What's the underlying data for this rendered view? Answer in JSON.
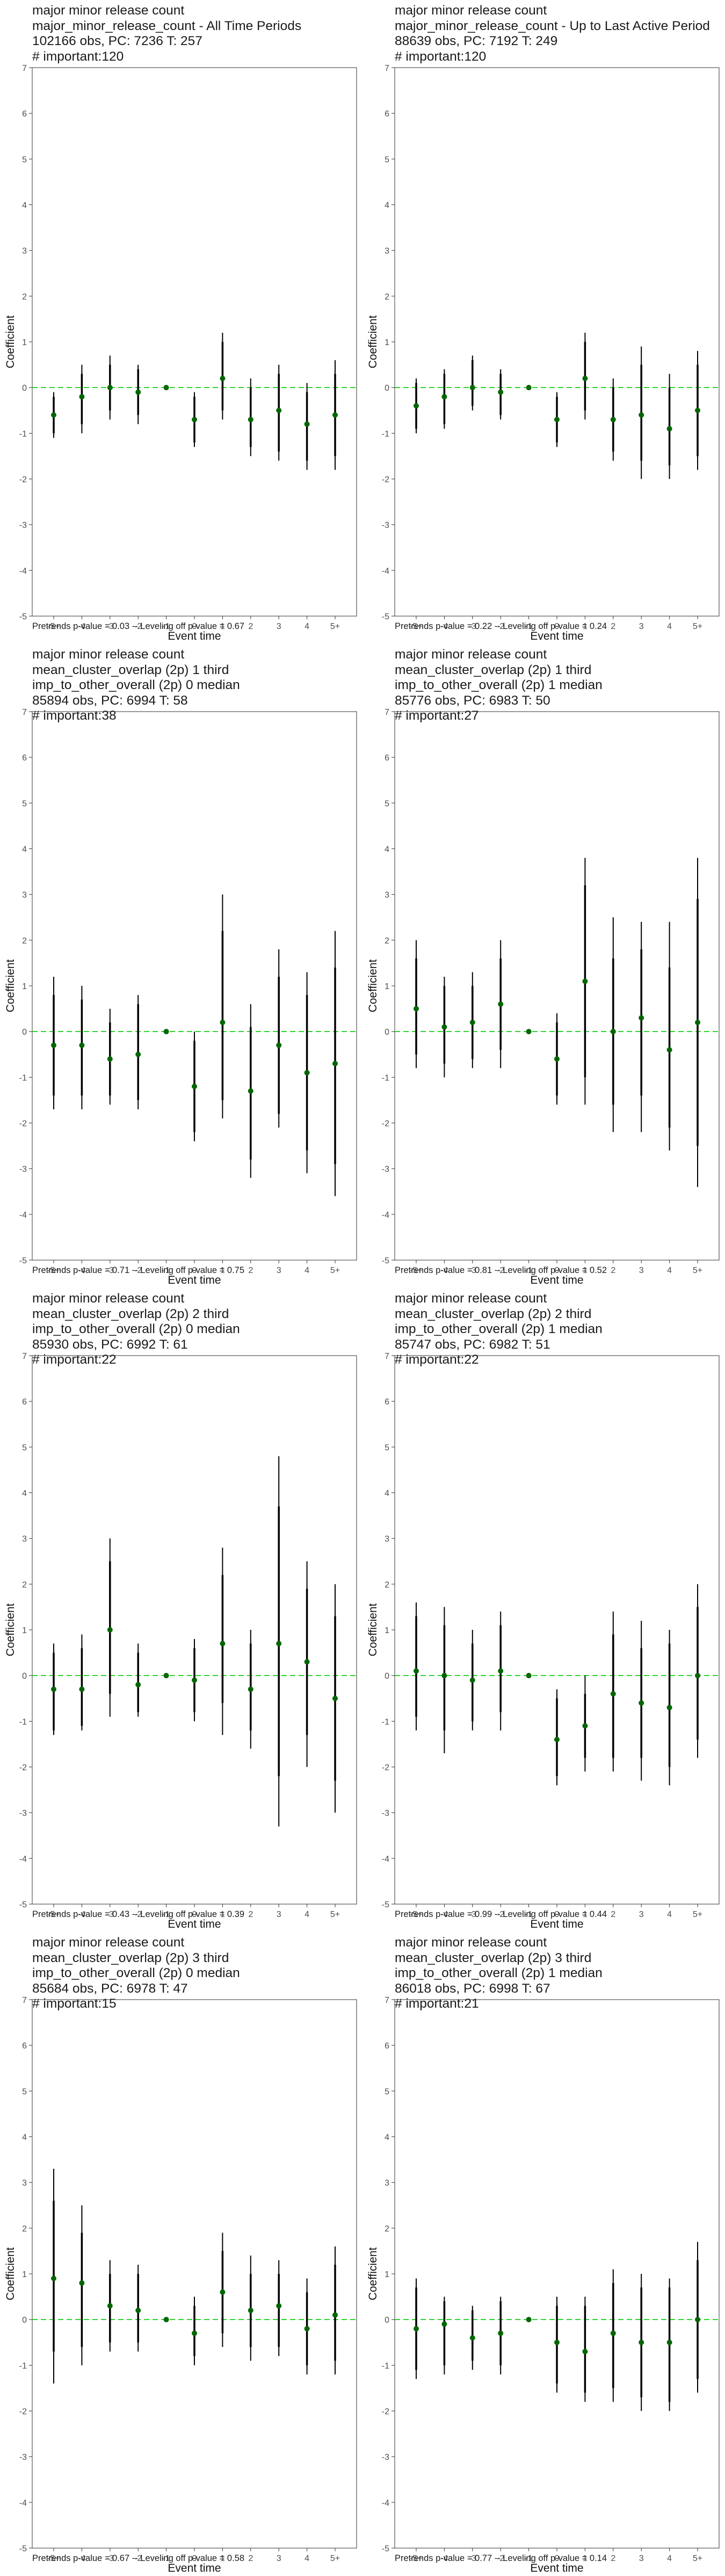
{
  "style": {
    "zero_line_color": "#00cc00",
    "point_color": "#006600",
    "bar_color": "#000000"
  },
  "panels": [
    {
      "title_lines": [
        "major minor release count",
        "major_minor_release_count - All Time Periods",
        "102166 obs, PC: 7236 T: 257",
        "# important:120"
      ],
      "footer": "Pretrends p-value = 0.03 -- Leveling off p-value = 0.67"
    },
    {
      "title_lines": [
        "major minor release count",
        "major_minor_release_count - Up to Last Active Period",
        "88639 obs, PC: 7192 T: 249",
        "# important:120"
      ],
      "footer": "Pretrends p-value = 0.22 -- Leveling off p-value = 0.24"
    },
    {
      "title_lines": [
        "major minor release count",
        "mean_cluster_overlap (2p) 1 third",
        "imp_to_other_overall (2p) 0 median",
        "85894 obs, PC: 6994 T: 58",
        "# important:38"
      ],
      "footer": "Pretrends p-value = 0.71 -- Leveling off p-value = 0.75"
    },
    {
      "title_lines": [
        "major minor release count",
        "mean_cluster_overlap (2p) 1 third",
        "imp_to_other_overall (2p) 1 median",
        "85776 obs, PC: 6983 T: 50",
        "# important:27"
      ],
      "footer": "Pretrends p-value = 0.81 -- Leveling off p-value = 0.52"
    },
    {
      "title_lines": [
        "major minor release count",
        "mean_cluster_overlap (2p) 2 third",
        "imp_to_other_overall (2p) 0 median",
        "85930 obs, PC: 6992 T: 61",
        "# important:22"
      ],
      "footer": "Pretrends p-value = 0.43 -- Leveling off p-value = 0.39"
    },
    {
      "title_lines": [
        "major minor release count",
        "mean_cluster_overlap (2p) 2 third",
        "imp_to_other_overall (2p) 1 median",
        "85747 obs, PC: 6982 T: 51",
        "# important:22"
      ],
      "footer": "Pretrends p-value = 0.99 -- Leveling off p-value = 0.44"
    },
    {
      "title_lines": [
        "major minor release count",
        "mean_cluster_overlap (2p) 3 third",
        "imp_to_other_overall (2p) 0 median",
        "85684 obs, PC: 6978 T: 47",
        "# important:15"
      ],
      "footer": "Pretrends p-value = 0.67 -- Leveling off p-value = 0.58"
    },
    {
      "title_lines": [
        "major minor release count",
        "mean_cluster_overlap (2p) 3 third",
        "imp_to_other_overall (2p) 1 median",
        "86018 obs, PC: 6998 T: 67",
        "# important:21"
      ],
      "footer": "Pretrends p-value = 0.77 -- Leveling off p-value = 0.14"
    }
  ],
  "chart_data": [
    {
      "type": "scatter",
      "xlabel": "Event time",
      "ylabel": "Coefficient",
      "ylim": [
        -5,
        7
      ],
      "categories": [
        "-5+",
        "-4",
        "-3",
        "-2",
        "-1",
        "0",
        "1",
        "2",
        "3",
        "4",
        "5+"
      ],
      "values": [
        -0.6,
        -0.2,
        0.0,
        -0.1,
        0.0,
        -0.7,
        0.2,
        -0.7,
        -0.5,
        -0.8,
        -0.6
      ],
      "ci95_low": [
        -1.1,
        -1.0,
        -0.7,
        -0.8,
        0.0,
        -1.3,
        -0.7,
        -1.5,
        -1.6,
        -1.8,
        -1.8
      ],
      "ci95_high": [
        -0.1,
        0.5,
        0.7,
        0.5,
        0.0,
        -0.1,
        1.2,
        0.2,
        0.5,
        0.1,
        0.6
      ],
      "ci90_low": [
        -1.0,
        -0.8,
        -0.5,
        -0.6,
        0.0,
        -1.2,
        -0.5,
        -1.3,
        -1.4,
        -1.6,
        -1.5
      ],
      "ci90_high": [
        -0.2,
        0.3,
        0.5,
        0.4,
        0.0,
        -0.2,
        1.0,
        0.0,
        0.3,
        -0.1,
        0.3
      ]
    },
    {
      "type": "scatter",
      "xlabel": "Event time",
      "ylabel": "Coefficient",
      "ylim": [
        -5,
        7
      ],
      "categories": [
        "-5+",
        "-4",
        "-3",
        "-2",
        "-1",
        "0",
        "1",
        "2",
        "3",
        "4",
        "5+"
      ],
      "values": [
        -0.4,
        -0.2,
        0.0,
        -0.1,
        0.0,
        -0.7,
        0.2,
        -0.7,
        -0.6,
        -0.9,
        -0.5
      ],
      "ci95_low": [
        -1.0,
        -0.9,
        -0.5,
        -0.7,
        0.0,
        -1.3,
        -0.7,
        -1.6,
        -2.0,
        -2.0,
        -1.8
      ],
      "ci95_high": [
        0.2,
        0.4,
        0.7,
        0.4,
        0.0,
        -0.1,
        1.2,
        0.2,
        0.9,
        0.3,
        0.8
      ],
      "ci90_low": [
        -0.9,
        -0.8,
        -0.4,
        -0.6,
        0.0,
        -1.2,
        -0.5,
        -1.4,
        -1.6,
        -1.7,
        -1.5
      ],
      "ci90_high": [
        0.1,
        0.3,
        0.6,
        0.3,
        0.0,
        -0.2,
        1.0,
        0.0,
        0.5,
        0.0,
        0.5
      ]
    },
    {
      "type": "scatter",
      "xlabel": "Event time",
      "ylabel": "Coefficient",
      "ylim": [
        -5,
        7
      ],
      "categories": [
        "-5+",
        "-4",
        "-3",
        "-2",
        "-1",
        "0",
        "1",
        "2",
        "3",
        "4",
        "5+"
      ],
      "values": [
        -0.3,
        -0.3,
        -0.6,
        -0.5,
        0.0,
        -1.2,
        0.2,
        -1.3,
        -0.3,
        -0.9,
        -0.7
      ],
      "ci95_low": [
        -1.7,
        -1.7,
        -1.6,
        -1.7,
        0.0,
        -2.4,
        -1.9,
        -3.2,
        -2.1,
        -3.1,
        -3.6
      ],
      "ci95_high": [
        1.2,
        1.0,
        0.5,
        0.8,
        0.0,
        0.0,
        3.0,
        0.6,
        1.8,
        1.3,
        2.2
      ],
      "ci90_low": [
        -1.4,
        -1.4,
        -1.4,
        -1.5,
        0.0,
        -2.2,
        -1.5,
        -2.8,
        -1.8,
        -2.6,
        -2.9
      ],
      "ci90_high": [
        0.8,
        0.7,
        0.2,
        0.6,
        0.0,
        -0.2,
        2.2,
        0.1,
        1.2,
        0.8,
        1.4
      ]
    },
    {
      "type": "scatter",
      "xlabel": "Event time",
      "ylabel": "Coefficient",
      "ylim": [
        -5,
        7
      ],
      "categories": [
        "-5+",
        "-4",
        "-3",
        "-2",
        "-1",
        "0",
        "1",
        "2",
        "3",
        "4",
        "5+"
      ],
      "values": [
        0.5,
        0.1,
        0.2,
        0.6,
        0.0,
        -0.6,
        1.1,
        0.0,
        0.3,
        -0.4,
        0.2
      ],
      "ci95_low": [
        -0.8,
        -1.0,
        -0.8,
        -0.8,
        0.0,
        -1.6,
        -1.6,
        -2.2,
        -2.2,
        -2.6,
        -3.4
      ],
      "ci95_high": [
        2.0,
        1.2,
        1.3,
        2.0,
        0.0,
        0.4,
        3.8,
        2.5,
        2.4,
        2.4,
        3.8
      ],
      "ci90_low": [
        -0.5,
        -0.7,
        -0.6,
        -0.4,
        0.0,
        -1.4,
        -1.0,
        -1.6,
        -1.4,
        -2.1,
        -2.5
      ],
      "ci90_high": [
        1.6,
        1.0,
        1.0,
        1.6,
        0.0,
        0.2,
        3.2,
        1.6,
        1.8,
        1.4,
        2.9
      ]
    },
    {
      "type": "scatter",
      "xlabel": "Event time",
      "ylabel": "Coefficient",
      "ylim": [
        -5,
        7
      ],
      "categories": [
        "-5+",
        "-4",
        "-3",
        "-2",
        "-1",
        "0",
        "1",
        "2",
        "3",
        "4",
        "5+"
      ],
      "values": [
        -0.3,
        -0.3,
        1.0,
        -0.2,
        0.0,
        -0.1,
        0.7,
        -0.3,
        0.7,
        0.3,
        -0.5
      ],
      "ci95_low": [
        -1.3,
        -1.2,
        -0.9,
        -0.9,
        0.0,
        -1.0,
        -1.3,
        -1.6,
        -3.3,
        -2.0,
        -3.0
      ],
      "ci95_high": [
        0.7,
        0.9,
        3.0,
        0.7,
        0.0,
        0.8,
        2.8,
        1.0,
        4.8,
        2.5,
        2.0
      ],
      "ci90_low": [
        -1.2,
        -1.1,
        -0.4,
        -0.8,
        0.0,
        -0.8,
        -0.6,
        -1.2,
        -2.2,
        -1.3,
        -2.3
      ],
      "ci90_high": [
        0.5,
        0.6,
        2.5,
        0.5,
        0.0,
        0.6,
        2.2,
        0.7,
        3.7,
        1.9,
        1.3
      ]
    },
    {
      "type": "scatter",
      "xlabel": "Event time",
      "ylabel": "Coefficient",
      "ylim": [
        -5,
        7
      ],
      "categories": [
        "-5+",
        "-4",
        "-3",
        "-2",
        "-1",
        "0",
        "1",
        "2",
        "3",
        "4",
        "5+"
      ],
      "values": [
        0.1,
        0.0,
        -0.1,
        0.1,
        0.0,
        -1.4,
        -1.1,
        -0.4,
        -0.6,
        -0.7,
        0.0
      ],
      "ci95_low": [
        -1.2,
        -1.7,
        -1.2,
        -1.2,
        0.0,
        -2.4,
        -2.1,
        -2.1,
        -2.3,
        -2.4,
        -1.8
      ],
      "ci95_high": [
        1.6,
        1.5,
        1.0,
        1.4,
        0.0,
        -0.3,
        0.0,
        1.4,
        1.2,
        1.0,
        2.0
      ],
      "ci90_low": [
        -0.9,
        -1.2,
        -1.0,
        -0.8,
        0.0,
        -2.2,
        -1.8,
        -1.8,
        -1.8,
        -2.0,
        -1.4
      ],
      "ci90_high": [
        1.3,
        1.1,
        0.7,
        1.1,
        0.0,
        -0.5,
        -0.4,
        0.9,
        0.6,
        0.7,
        1.5
      ]
    },
    {
      "type": "scatter",
      "xlabel": "Event time",
      "ylabel": "Coefficient",
      "ylim": [
        -5,
        7
      ],
      "categories": [
        "-5+",
        "-4",
        "-3",
        "-2",
        "-1",
        "0",
        "1",
        "2",
        "3",
        "4",
        "5+"
      ],
      "values": [
        0.9,
        0.8,
        0.3,
        0.2,
        0.0,
        -0.3,
        0.6,
        0.2,
        0.3,
        -0.2,
        0.1
      ],
      "ci95_low": [
        -1.4,
        -1.0,
        -0.7,
        -0.7,
        0.0,
        -1.0,
        -0.6,
        -0.9,
        -0.8,
        -1.2,
        -1.2
      ],
      "ci95_high": [
        3.3,
        2.5,
        1.3,
        1.2,
        0.0,
        0.5,
        1.9,
        1.4,
        1.3,
        0.9,
        1.6
      ],
      "ci90_low": [
        -0.7,
        -0.6,
        -0.5,
        -0.5,
        0.0,
        -0.8,
        -0.3,
        -0.6,
        -0.6,
        -1.0,
        -0.9
      ],
      "ci90_high": [
        2.6,
        1.9,
        1.0,
        1.0,
        0.0,
        0.3,
        1.5,
        1.0,
        1.0,
        0.6,
        1.2
      ]
    },
    {
      "type": "scatter",
      "xlabel": "Event time",
      "ylabel": "Coefficient",
      "ylim": [
        -5,
        7
      ],
      "categories": [
        "-5+",
        "-4",
        "-3",
        "-2",
        "-1",
        "0",
        "1",
        "2",
        "3",
        "4",
        "5+"
      ],
      "values": [
        -0.2,
        -0.1,
        -0.4,
        -0.3,
        0.0,
        -0.5,
        -0.7,
        -0.3,
        -0.5,
        -0.5,
        0.0
      ],
      "ci95_low": [
        -1.3,
        -1.2,
        -1.1,
        -1.2,
        0.0,
        -1.6,
        -1.8,
        -1.8,
        -2.0,
        -2.0,
        -1.6
      ],
      "ci95_high": [
        0.9,
        0.5,
        0.3,
        0.5,
        0.0,
        0.5,
        0.5,
        1.1,
        1.0,
        0.9,
        1.7
      ],
      "ci90_low": [
        -1.1,
        -1.0,
        -0.9,
        -1.0,
        0.0,
        -1.4,
        -1.6,
        -1.5,
        -1.7,
        -1.8,
        -1.3
      ],
      "ci90_high": [
        0.7,
        0.4,
        0.2,
        0.4,
        0.0,
        0.3,
        0.3,
        0.8,
        0.7,
        0.7,
        1.3
      ]
    }
  ]
}
